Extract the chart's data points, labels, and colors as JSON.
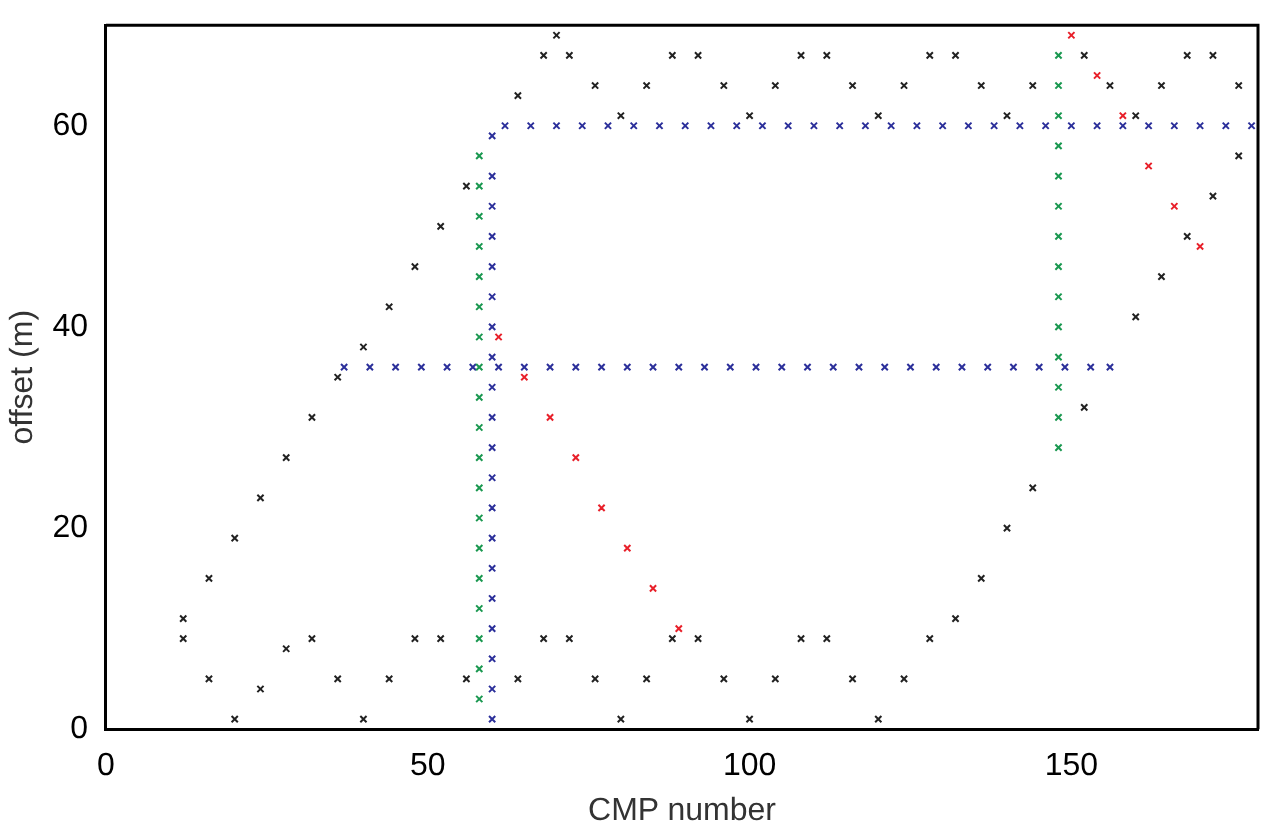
{
  "chart_data": {
    "type": "scatter",
    "xlabel": "CMP number",
    "ylabel": "offset (m)",
    "xlim": [
      0,
      179
    ],
    "ylim": [
      0,
      70
    ],
    "xticks": [
      0,
      50,
      100,
      150
    ],
    "yticks": [
      0,
      20,
      40,
      60
    ],
    "grid": false,
    "legend": false,
    "marker": "cross",
    "series": [
      {
        "color": "#222222",
        "x": [
          12,
          16,
          20,
          24,
          28,
          32,
          36,
          40,
          44,
          48,
          52,
          56,
          64,
          68,
          72,
          76,
          80,
          84,
          88,
          92,
          96,
          100,
          104,
          108,
          112,
          116,
          120,
          124,
          128,
          132,
          136,
          140,
          144,
          152,
          160,
          164,
          168,
          172,
          176,
          12,
          16,
          20,
          24,
          28,
          32,
          36,
          40,
          44,
          48,
          52,
          56,
          64,
          68,
          70,
          72,
          76,
          80,
          84,
          88,
          92,
          96,
          100,
          104,
          108,
          112,
          116,
          120,
          124,
          128,
          132,
          136,
          140,
          144,
          152,
          156,
          160,
          164,
          168,
          172,
          176
        ],
        "values": [
          9,
          5,
          1,
          4,
          8,
          9,
          5,
          1,
          5,
          9,
          9,
          5,
          5,
          9,
          9,
          5,
          1,
          5,
          9,
          9,
          5,
          1,
          5,
          9,
          9,
          5,
          1,
          5,
          9,
          11,
          15,
          20,
          24,
          32,
          41,
          45,
          49,
          53,
          57,
          11,
          15,
          19,
          23,
          27,
          31,
          35,
          38,
          42,
          46,
          50,
          54,
          63,
          67,
          69,
          67,
          64,
          61,
          64,
          67,
          67,
          64,
          61,
          64,
          67,
          67,
          64,
          61,
          64,
          67,
          67,
          64,
          61,
          64,
          67,
          64,
          61,
          64,
          67,
          67,
          64
        ]
      },
      {
        "color": "#1a9850",
        "x": [
          58,
          58,
          58,
          58,
          58,
          58,
          58,
          58,
          58,
          58,
          58,
          58,
          58,
          58,
          58,
          58,
          58,
          58,
          58
        ],
        "values": [
          3,
          6,
          9,
          12,
          15,
          18,
          21,
          24,
          27,
          30,
          33,
          36,
          39,
          42,
          45,
          48,
          51,
          54,
          57
        ]
      },
      {
        "color": "#2b2f9a",
        "x": [
          60,
          60,
          60,
          60,
          60,
          60,
          60,
          60,
          60,
          60,
          60,
          60,
          60,
          60,
          60,
          60,
          60,
          60,
          60,
          60
        ],
        "values": [
          1,
          4,
          7,
          10,
          13,
          16,
          19,
          22,
          25,
          28,
          31,
          34,
          37,
          40,
          43,
          46,
          49,
          52,
          55,
          59
        ]
      },
      {
        "color": "#2b2f9a",
        "x": [
          37,
          41,
          45,
          49,
          53,
          57,
          61,
          65,
          69,
          73,
          77,
          81,
          85,
          89,
          93,
          97,
          101,
          105,
          109,
          113,
          117,
          121,
          125,
          129,
          133,
          137,
          141,
          145,
          149,
          153,
          156
        ],
        "values": [
          36,
          36,
          36,
          36,
          36,
          36,
          36,
          36,
          36,
          36,
          36,
          36,
          36,
          36,
          36,
          36,
          36,
          36,
          36,
          36,
          36,
          36,
          36,
          36,
          36,
          36,
          36,
          36,
          36,
          36,
          36
        ]
      },
      {
        "color": "#2b2f9a",
        "x": [
          62,
          66,
          70,
          74,
          78,
          82,
          86,
          90,
          94,
          98,
          102,
          106,
          110,
          114,
          118,
          122,
          126,
          130,
          134,
          138,
          142,
          146,
          150,
          154,
          158,
          162,
          166,
          170,
          174,
          178
        ],
        "values": [
          60,
          60,
          60,
          60,
          60,
          60,
          60,
          60,
          60,
          60,
          60,
          60,
          60,
          60,
          60,
          60,
          60,
          60,
          60,
          60,
          60,
          60,
          60,
          60,
          60,
          60,
          60,
          60,
          60,
          60
        ]
      },
      {
        "color": "#e8202a",
        "x": [
          61,
          65,
          69,
          73,
          77,
          81,
          85,
          89
        ],
        "values": [
          39,
          35,
          31,
          27,
          22,
          18,
          14,
          10
        ]
      },
      {
        "color": "#e8202a",
        "x": [
          150,
          154,
          158,
          162,
          166,
          170
        ],
        "values": [
          69,
          65,
          61,
          56,
          52,
          48
        ]
      },
      {
        "color": "#1a9850",
        "x": [
          148,
          148,
          148,
          148,
          148,
          148,
          148,
          148,
          148,
          148,
          148,
          148,
          148,
          148
        ],
        "values": [
          28,
          31,
          34,
          37,
          40,
          43,
          46,
          49,
          52,
          55,
          58,
          61,
          64,
          67
        ]
      }
    ]
  }
}
